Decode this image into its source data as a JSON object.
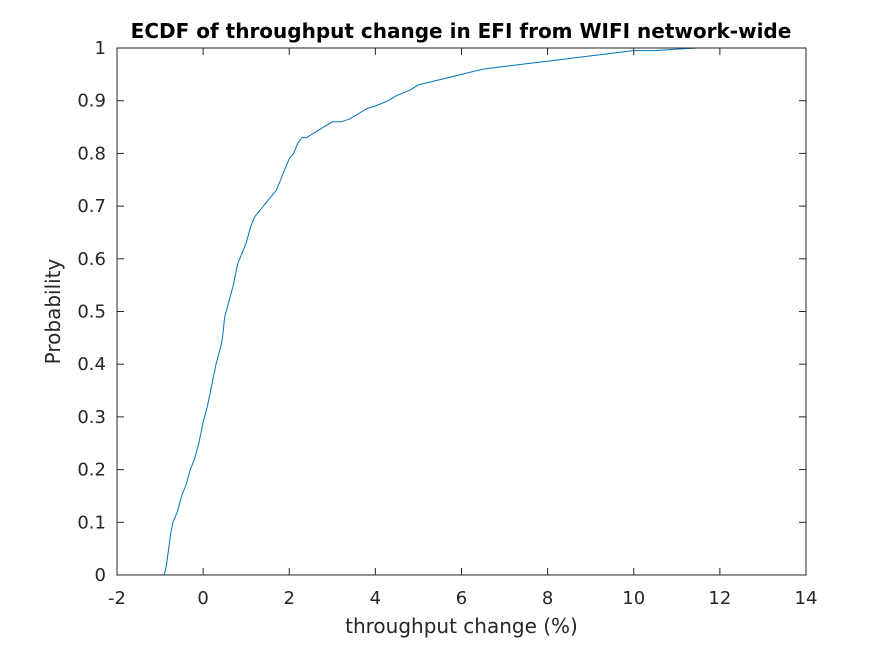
{
  "chart_data": {
    "type": "line",
    "title": "ECDF of throughput change in EFI from WIFI network-wide",
    "xlabel": "throughput change (%)",
    "ylabel": "Probability",
    "xlim": [
      -2,
      14
    ],
    "ylim": [
      0,
      1
    ],
    "xticks": [
      -2,
      0,
      2,
      4,
      6,
      8,
      10,
      12,
      14
    ],
    "yticks": [
      0,
      0.1,
      0.2,
      0.3,
      0.4,
      0.5,
      0.6,
      0.7,
      0.8,
      0.9,
      1
    ],
    "xtick_labels": [
      "-2",
      "0",
      "2",
      "4",
      "6",
      "8",
      "10",
      "12",
      "14"
    ],
    "ytick_labels": [
      "0",
      "0.1",
      "0.2",
      "0.3",
      "0.4",
      "0.5",
      "0.6",
      "0.7",
      "0.8",
      "0.9",
      "1"
    ],
    "grid": false,
    "series": [
      {
        "color": "#0072bd",
        "x": [
          -0.95,
          -0.9,
          -0.85,
          -0.8,
          -0.75,
          -0.7,
          -0.6,
          -0.5,
          -0.4,
          -0.3,
          -0.2,
          -0.1,
          0.0,
          0.1,
          0.2,
          0.3,
          0.4,
          0.45,
          0.5,
          0.6,
          0.7,
          0.8,
          0.9,
          1.0,
          1.1,
          1.2,
          1.3,
          1.4,
          1.5,
          1.6,
          1.7,
          1.8,
          1.9,
          2.0,
          2.1,
          2.2,
          2.3,
          2.4,
          2.5,
          2.6,
          2.7,
          2.8,
          2.9,
          3.0,
          3.2,
          3.4,
          3.6,
          3.8,
          4.0,
          4.3,
          4.5,
          4.8,
          5.0,
          5.5,
          6.0,
          6.5,
          7.0,
          7.5,
          8.0,
          8.5,
          9.0,
          9.5,
          10.0,
          10.5,
          11.0,
          11.5,
          12.0,
          12.2
        ],
        "y": [
          0.0,
          0.0,
          0.02,
          0.05,
          0.08,
          0.1,
          0.12,
          0.15,
          0.17,
          0.2,
          0.22,
          0.25,
          0.29,
          0.32,
          0.36,
          0.4,
          0.43,
          0.45,
          0.49,
          0.52,
          0.55,
          0.59,
          0.61,
          0.63,
          0.66,
          0.68,
          0.69,
          0.7,
          0.71,
          0.72,
          0.73,
          0.75,
          0.77,
          0.79,
          0.8,
          0.82,
          0.83,
          0.83,
          0.835,
          0.84,
          0.845,
          0.85,
          0.855,
          0.86,
          0.86,
          0.865,
          0.875,
          0.885,
          0.89,
          0.9,
          0.91,
          0.92,
          0.93,
          0.94,
          0.95,
          0.96,
          0.965,
          0.97,
          0.975,
          0.98,
          0.985,
          0.99,
          0.995,
          0.995,
          0.998,
          1.0,
          1.0,
          1.0
        ]
      }
    ]
  }
}
